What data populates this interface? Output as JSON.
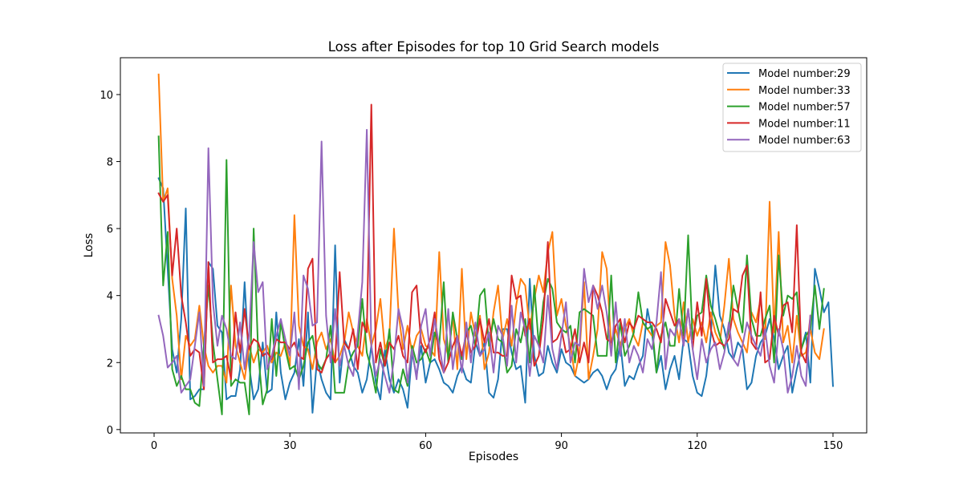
{
  "chart_data": {
    "type": "line",
    "title": "Loss after Episodes for top 10 Grid Search models",
    "xlabel": "Episodes",
    "ylabel": "Loss",
    "xlim": [
      -7.45,
      157.45
    ],
    "ylim": [
      -0.1,
      11.1
    ],
    "xticks": [
      0,
      30,
      60,
      90,
      120,
      150
    ],
    "yticks": [
      0,
      2,
      4,
      6,
      8,
      10
    ],
    "grid": false,
    "legend_position": "upper right",
    "series": [
      {
        "name": "Model number:29",
        "color": "#1f77b4",
        "x_start": 1,
        "values": [
          7.5,
          7.2,
          4.8,
          2.4,
          1.7,
          3.3,
          6.6,
          0.9,
          1.0,
          1.2,
          1.2,
          5.0,
          4.8,
          3.1,
          2.9,
          0.9,
          1.0,
          1.0,
          1.8,
          4.4,
          1.9,
          0.9,
          1.2,
          2.6,
          1.1,
          1.2,
          3.5,
          1.7,
          0.9,
          1.4,
          1.7,
          2.7,
          1.3,
          3.5,
          0.5,
          2.1,
          1.5,
          1.1,
          0.9,
          5.5,
          1.4,
          2.7,
          2.4,
          1.9,
          1.7,
          1.1,
          1.5,
          2.5,
          1.4,
          0.9,
          2.4,
          1.5,
          1.1,
          1.5,
          1.2,
          0.65,
          2.3,
          1.6,
          2.5,
          1.4,
          2.0,
          2.1,
          1.8,
          1.4,
          1.3,
          1.1,
          1.6,
          1.9,
          1.5,
          1.4,
          2.6,
          2.2,
          2.6,
          1.1,
          0.95,
          1.5,
          3.0,
          3.0,
          2.3,
          1.8,
          1.9,
          0.8,
          4.5,
          2.2,
          1.6,
          1.7,
          2.5,
          2.0,
          1.7,
          2.4,
          2.0,
          1.9,
          1.6,
          1.5,
          1.4,
          1.5,
          1.7,
          1.8,
          1.6,
          1.2,
          1.6,
          1.8,
          2.6,
          1.3,
          1.6,
          1.5,
          1.9,
          2.2,
          3.6,
          2.9,
          1.7,
          2.2,
          1.2,
          1.8,
          2.2,
          1.5,
          2.7,
          2.6,
          1.6,
          1.1,
          1.0,
          1.6,
          2.8,
          4.9,
          3.4,
          3.0,
          2.3,
          2.1,
          2.6,
          2.4,
          1.2,
          1.4,
          2.2,
          2.6,
          2.8,
          3.3,
          2.7,
          1.8,
          2.2,
          2.5,
          1.1,
          1.8,
          2.4,
          2.9,
          1.4,
          4.8,
          4.2,
          3.5,
          3.8,
          1.3
        ]
      },
      {
        "name": "Model number:33",
        "color": "#ff7f0e",
        "x_start": 1,
        "values": [
          10.6,
          6.8,
          7.2,
          4.5,
          3.4,
          1.5,
          2.8,
          2.5,
          2.7,
          3.7,
          2.5,
          1.9,
          1.7,
          1.9,
          1.9,
          1.4,
          4.3,
          2.5,
          2.0,
          1.5,
          2.5,
          2.0,
          2.4,
          2.3,
          2.5,
          2.0,
          2.3,
          2.2,
          2.6,
          1.9,
          6.4,
          3.1,
          2.5,
          2.4,
          1.8,
          2.6,
          2.9,
          2.4,
          2.7,
          2.0,
          2.2,
          2.6,
          3.5,
          2.9,
          2.5,
          2.2,
          3.3,
          2.5,
          3.0,
          3.9,
          2.4,
          2.8,
          6.0,
          3.5,
          2.4,
          3.1,
          2.3,
          2.8,
          3.0,
          2.5,
          2.4,
          2.2,
          5.3,
          2.7,
          2.2,
          3.4,
          1.8,
          4.8,
          2.1,
          3.5,
          2.8,
          3.4,
          1.8,
          2.3,
          3.5,
          4.3,
          2.7,
          3.3,
          2.5,
          3.7,
          4.5,
          4.3,
          3.0,
          3.9,
          4.6,
          4.1,
          5.3,
          5.9,
          3.4,
          3.9,
          3.1,
          2.5,
          1.6,
          2.3,
          4.4,
          1.5,
          2.2,
          3.0,
          5.3,
          4.8,
          2.5,
          3.0,
          2.5,
          3.0,
          3.3,
          2.8,
          2.5,
          3.2,
          3.0,
          2.8,
          3.1,
          3.2,
          5.6,
          4.9,
          3.4,
          2.6,
          3.8,
          2.6,
          3.3,
          2.8,
          3.2,
          2.6,
          3.5,
          2.9,
          2.6,
          3.7,
          5.1,
          3.3,
          2.9,
          2.6,
          2.3,
          3.5,
          3.2,
          3.9,
          2.7,
          6.8,
          2.9,
          5.9,
          2.6,
          3.1,
          2.0,
          3.4,
          2.2,
          2.3,
          3.0,
          2.3,
          2.1,
          3.0
        ]
      },
      {
        "name": "Model number:57",
        "color": "#2ca02c",
        "x_start": 1,
        "values": [
          8.75,
          4.3,
          5.9,
          1.8,
          1.3,
          1.6,
          1.2,
          1.2,
          0.8,
          0.7,
          2.5,
          4.3,
          2.6,
          1.5,
          0.45,
          8.05,
          1.3,
          1.5,
          1.4,
          1.4,
          0.45,
          6.0,
          2.3,
          0.75,
          1.2,
          3.3,
          1.6,
          3.2,
          2.4,
          1.8,
          1.9,
          1.5,
          1.9,
          2.6,
          2.8,
          2.0,
          1.8,
          2.1,
          3.1,
          1.1,
          1.1,
          1.1,
          2.0,
          2.3,
          2.5,
          3.9,
          2.3,
          1.8,
          1.1,
          2.4,
          1.9,
          3.0,
          1.2,
          1.1,
          1.8,
          1.3,
          2.5,
          2.0,
          2.1,
          2.4,
          2.0,
          2.9,
          2.5,
          4.4,
          2.0,
          3.5,
          2.7,
          2.1,
          2.9,
          3.1,
          2.5,
          4.0,
          4.2,
          2.5,
          3.3,
          2.7,
          2.6,
          1.7,
          1.9,
          3.0,
          2.6,
          3.3,
          2.0,
          4.3,
          2.5,
          3.8,
          4.5,
          4.2,
          3.2,
          3.0,
          2.9,
          3.1,
          2.0,
          3.5,
          3.6,
          3.5,
          3.4,
          2.2,
          2.2,
          2.2,
          4.6,
          2.0,
          3.2,
          2.2,
          2.5,
          2.9,
          4.1,
          3.2,
          3.0,
          3.1,
          1.7,
          2.8,
          3.2,
          2.5,
          2.5,
          4.2,
          2.8,
          5.8,
          2.7,
          3.4,
          3.5,
          4.6,
          3.7,
          3.3,
          2.8,
          2.4,
          3.0,
          4.3,
          3.6,
          2.9,
          5.2,
          3.3,
          2.8,
          2.8,
          3.3,
          3.7,
          2.0,
          5.2,
          3.4,
          4.0,
          3.9,
          4.1,
          2.4,
          2.8,
          3.0,
          4.3,
          3.0,
          4.2
        ]
      },
      {
        "name": "Model number:11",
        "color": "#d62728",
        "x_start": 1,
        "values": [
          7.05,
          6.8,
          7.0,
          4.6,
          6.0,
          4.0,
          3.2,
          2.2,
          2.4,
          2.3,
          1.2,
          5.0,
          2.0,
          2.1,
          2.1,
          2.2,
          1.5,
          3.5,
          2.3,
          3.6,
          2.4,
          2.7,
          2.6,
          2.2,
          2.3,
          2.1,
          2.7,
          2.6,
          2.6,
          2.4,
          2.6,
          2.2,
          2.1,
          4.8,
          5.1,
          1.8,
          1.7,
          2.1,
          2.3,
          2.0,
          4.7,
          2.6,
          2.4,
          3.0,
          1.8,
          3.2,
          2.9,
          9.7,
          2.0,
          2.6,
          1.9,
          2.6,
          2.4,
          2.8,
          2.2,
          2.0,
          4.1,
          4.3,
          2.6,
          2.3,
          2.7,
          3.5,
          2.1,
          1.7,
          2.0,
          2.5,
          2.8,
          2.2,
          2.9,
          2.3,
          2.5,
          3.3,
          2.6,
          3.3,
          2.3,
          2.3,
          2.2,
          2.2,
          4.6,
          3.9,
          4.0,
          2.8,
          3.3,
          1.9,
          2.2,
          3.3,
          5.6,
          2.6,
          2.7,
          3.0,
          2.3,
          2.4,
          3.0,
          2.0,
          2.6,
          2.0,
          4.3,
          4.0,
          3.5,
          2.7,
          2.6,
          3.1,
          3.3,
          2.6,
          3.2,
          3.0,
          3.4,
          3.3,
          3.2,
          3.2,
          3.0,
          2.6,
          3.9,
          3.5,
          3.1,
          3.3,
          2.6,
          3.6,
          2.4,
          3.8,
          2.8,
          4.5,
          3.0,
          2.5,
          2.6,
          2.5,
          2.7,
          3.6,
          3.5,
          4.6,
          4.9,
          2.6,
          2.4,
          4.1,
          2.0,
          2.1,
          3.4,
          2.8,
          3.7,
          3.8,
          2.9,
          6.1,
          2.3,
          2.0,
          3.4
        ]
      },
      {
        "name": "Model number:63",
        "color": "#9467bd",
        "x_start": 1,
        "values": [
          3.4,
          2.8,
          1.85,
          2.0,
          2.2,
          1.1,
          1.3,
          1.5,
          2.5,
          3.5,
          1.3,
          8.4,
          3.8,
          2.5,
          3.4,
          3.0,
          2.2,
          2.1,
          3.2,
          1.8,
          2.8,
          5.6,
          4.1,
          4.4,
          1.8,
          2.2,
          2.8,
          3.3,
          2.7,
          2.2,
          3.5,
          1.2,
          4.6,
          4.2,
          3.1,
          3.2,
          8.6,
          3.4,
          2.0,
          3.6,
          1.9,
          2.5,
          1.9,
          1.6,
          2.9,
          4.4,
          8.95,
          2.5,
          1.6,
          2.1,
          1.6,
          1.1,
          2.1,
          3.6,
          3.0,
          1.4,
          2.4,
          1.5,
          3.1,
          3.6,
          2.2,
          3.3,
          2.5,
          1.7,
          3.6,
          1.8,
          2.8,
          1.7,
          3.2,
          2.0,
          3.2,
          2.2,
          2.4,
          2.9,
          1.7,
          3.1,
          2.8,
          1.9,
          3.7,
          2.0,
          3.5,
          3.0,
          1.6,
          2.8,
          2.5,
          2.0,
          4.0,
          2.4,
          1.8,
          2.8,
          3.8,
          2.0,
          2.6,
          2.5,
          4.8,
          3.8,
          4.3,
          3.6,
          4.3,
          3.5,
          2.2,
          3.8,
          2.2,
          3.3,
          2.0,
          2.5,
          2.2,
          1.7,
          2.7,
          2.4,
          3.2,
          4.7,
          1.8,
          3.0,
          2.8,
          3.3,
          2.5,
          3.6,
          2.4,
          1.5,
          2.7,
          2.0,
          2.4,
          2.6,
          1.8,
          2.3,
          3.2,
          2.1,
          1.9,
          2.5,
          3.2,
          2.8,
          2.5,
          2.2,
          3.0,
          1.9,
          1.4,
          3.0,
          2.4,
          1.1,
          1.6,
          2.5,
          1.6,
          1.3,
          3.4
        ]
      }
    ]
  }
}
